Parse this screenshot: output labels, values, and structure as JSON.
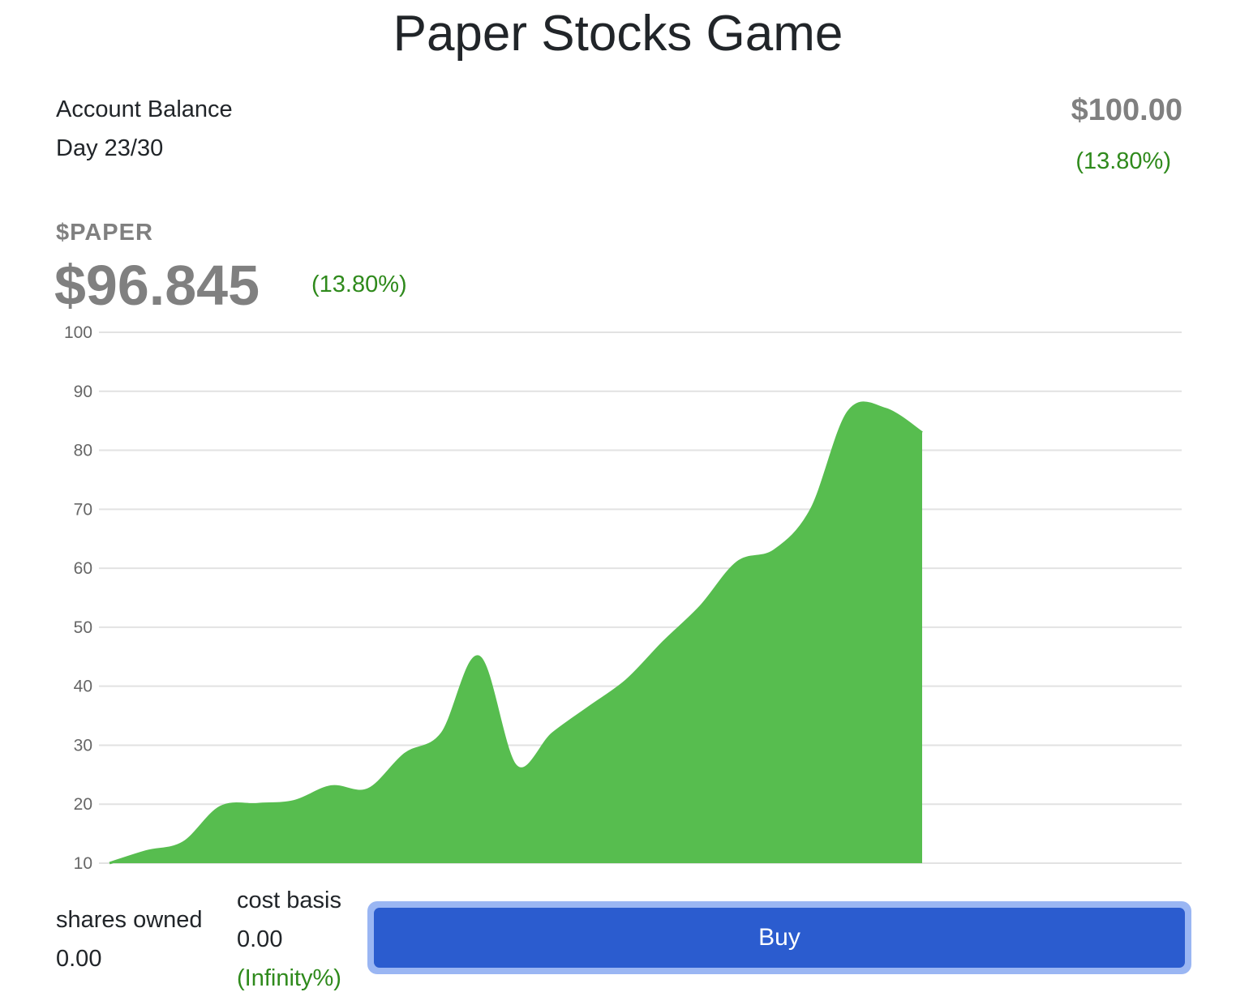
{
  "app": {
    "title": "Paper Stocks Game"
  },
  "account": {
    "label": "Account Balance",
    "day": "Day 23/30",
    "balance": "$100.00",
    "change": "(13.80%)"
  },
  "stock": {
    "ticker": "$PAPER",
    "price": "$96.845",
    "change": "(13.80%)"
  },
  "holdings": {
    "shares_label": "shares owned",
    "shares_value": "0.00",
    "cost_label": "cost basis",
    "cost_value": "0.00",
    "cost_change": "(Infinity%)"
  },
  "actions": {
    "buy_label": "Buy"
  },
  "colors": {
    "area_fill": "#57bd4f",
    "positive": "#2f8a1c",
    "muted": "#808080",
    "button": "#2b5ccf",
    "button_ring": "#9ab6f3"
  },
  "chart_data": {
    "type": "area",
    "title": "",
    "xlabel": "",
    "ylabel": "",
    "ylim": [
      10,
      100
    ],
    "yticks": [
      100,
      90,
      80,
      70,
      60,
      50,
      40,
      30,
      20,
      10
    ],
    "grid": true,
    "total_days": 30,
    "x": [
      1,
      2,
      3,
      4,
      5,
      6,
      7,
      8,
      9,
      10,
      11,
      12,
      13,
      14,
      15,
      16,
      17,
      18,
      19,
      20,
      21,
      22,
      23
    ],
    "series": [
      {
        "values": [
          10.0,
          12.0,
          13.5,
          19.5,
          20.0,
          20.5,
          23.0,
          22.5,
          28.5,
          32.0,
          45.0,
          26.5,
          32.0,
          36.5,
          41.0,
          47.5,
          53.5,
          61.0,
          63.0,
          70.0,
          86.5,
          87.0,
          83.0
        ]
      }
    ]
  }
}
